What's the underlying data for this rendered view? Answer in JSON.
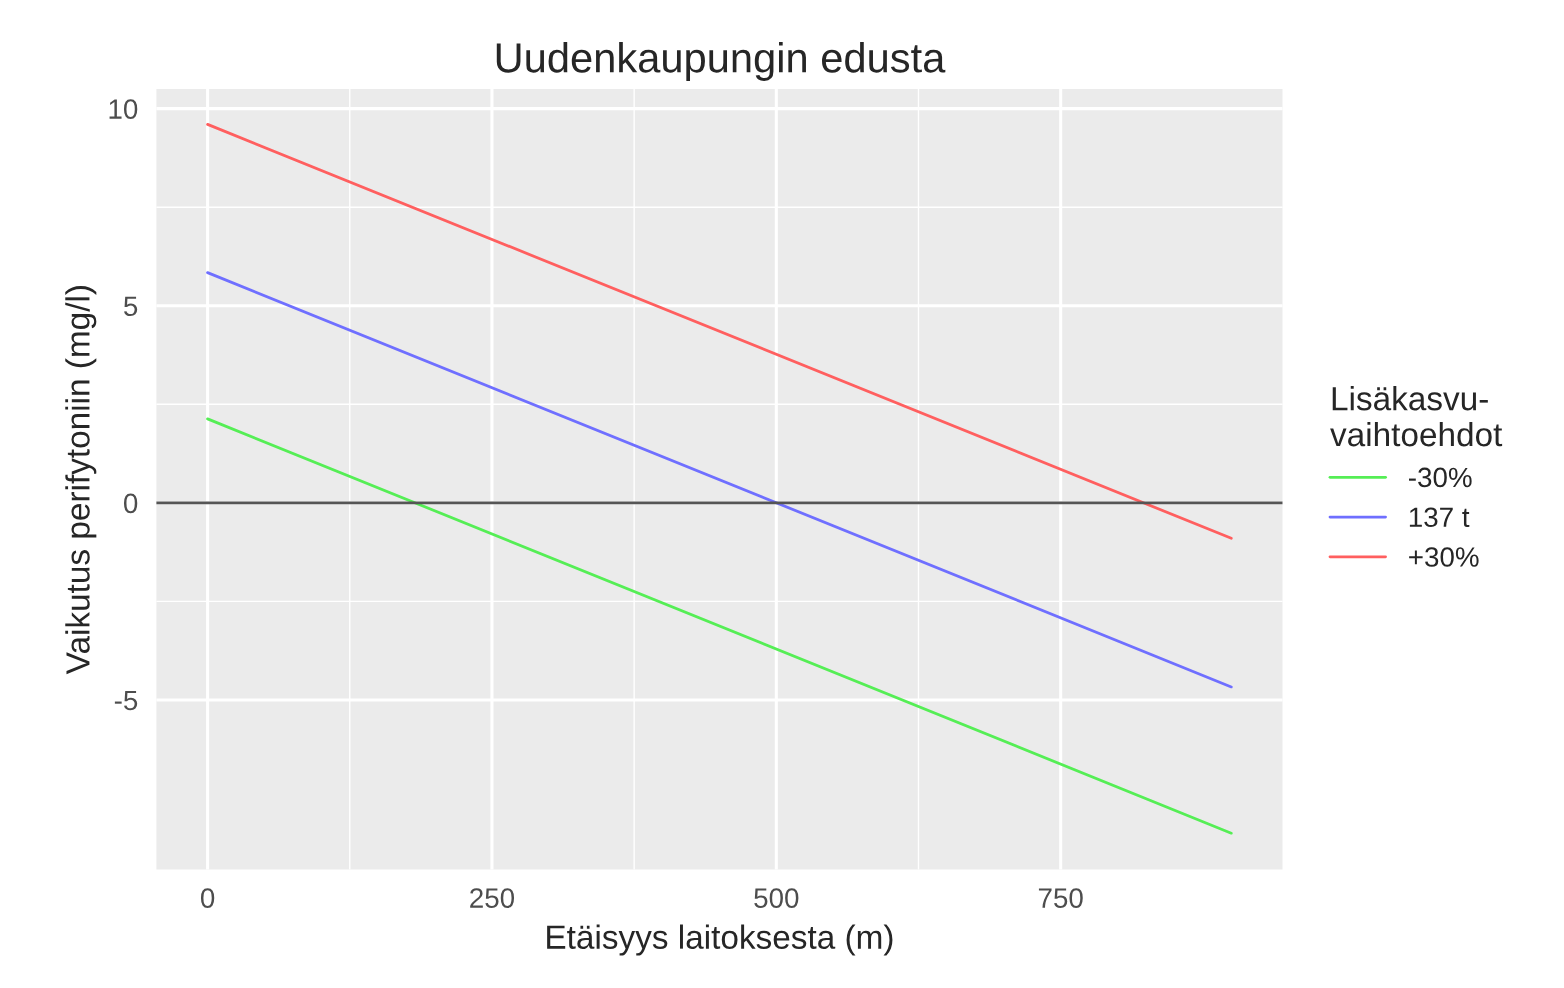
{
  "chart_data": {
    "type": "line",
    "title": "Uudenkaupungin edusta",
    "xlabel": "Etäisyys laitoksesta (m)",
    "ylabel": "Vaikutus perifytoniin (mg/l)",
    "legend_title": "Lisäkasvu-\nvaihtoehdot",
    "x": [
      0,
      900
    ],
    "series": [
      {
        "name": "-30%",
        "color": "#55ee55",
        "values": [
          2.13,
          -8.38
        ]
      },
      {
        "name": "137 t",
        "color": "#6f6fff",
        "values": [
          5.84,
          -4.67
        ]
      },
      {
        "name": "+30%",
        "color": "#ff5f5f",
        "values": [
          9.6,
          -0.9
        ]
      }
    ],
    "xlim": [
      -45,
      945
    ],
    "xticks": [
      0,
      250,
      500,
      750
    ],
    "ylim": [
      -9.3,
      10.5
    ],
    "yticks": [
      -5,
      0,
      5,
      10
    ],
    "ref_lines": [
      {
        "axis": "y",
        "value": 0,
        "color": "#555555"
      }
    ],
    "grid": true,
    "legend": "right",
    "marker": "none",
    "line_style": "solid"
  }
}
